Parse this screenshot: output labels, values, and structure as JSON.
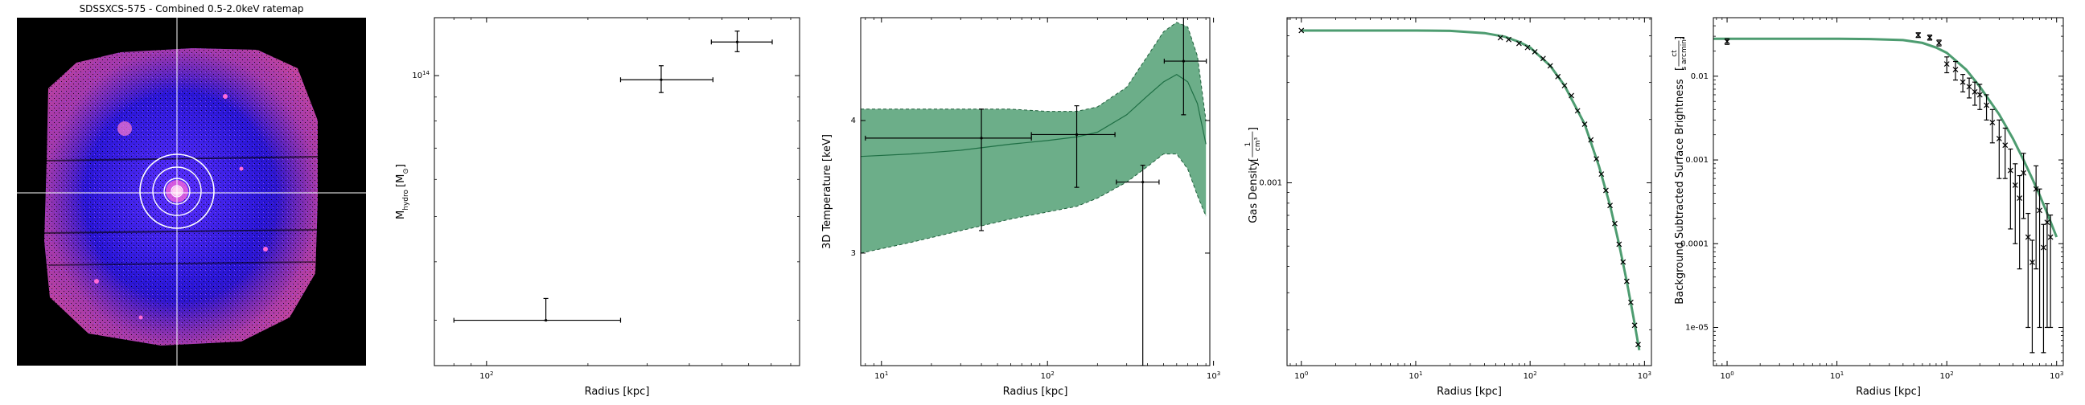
{
  "image_panel": {
    "title": "SDSSXCS-575 - Combined 0.5-2.0keV ratemap"
  },
  "chart_data": [
    {
      "type": "scatter",
      "name_text": "",
      "xlabel": "Radius [kpc]",
      "ylabel": "M",
      "ylabel_sub": "hydro",
      "ylabel_unit": "[M",
      "ylabel_unit_sub": "⊙",
      "ylabel_unit_end": "]",
      "xscale": "log",
      "yscale": "log",
      "xlim": [
        70,
        850
      ],
      "ylim": [
        24000000000000.0,
        133000000000000.0
      ],
      "x_ticks": [
        {
          "value": 100,
          "label": "10",
          "sup": "2"
        }
      ],
      "y_ticks": [
        {
          "value": 100000000000000.0,
          "label": "10",
          "sup": "14"
        }
      ],
      "points": [
        {
          "x": 150,
          "y": 30000000000000.0,
          "xerr": [
            70,
            100
          ],
          "yerr": [
            2700.0,
            3400000000000.0
          ]
        },
        {
          "x": 330,
          "y": 98000000000000.0,
          "xerr": [
            80,
            140
          ],
          "yerr": [
            6000000000000.0,
            7000000000000.0
          ]
        },
        {
          "x": 555,
          "y": 118000000000000.0,
          "xerr": [
            90,
            150
          ],
          "yerr": [
            5500000000000.0,
            6500000000000.0
          ]
        }
      ]
    },
    {
      "type": "line",
      "xlabel": "Radius [kpc]",
      "ylabel": "3D Temperature [keV]",
      "xscale": "log",
      "yscale": "log",
      "xlim": [
        7.5,
        950
      ],
      "ylim": [
        2.35,
        5.0
      ],
      "x_ticks": [
        {
          "value": 10,
          "label": "10",
          "sup": "1"
        },
        {
          "value": 100,
          "label": "10",
          "sup": "2"
        },
        {
          "value": 1000,
          "label": "10",
          "sup": "3"
        }
      ],
      "y_ticks": [
        {
          "value": 3,
          "label": "3"
        },
        {
          "value": 4,
          "label": "4"
        }
      ],
      "series": [
        {
          "role": "model",
          "color": "#2e8b57",
          "fill_color": "#2e8b57",
          "x": [
            7.5,
            15,
            30,
            60,
            100,
            150,
            200,
            300,
            400,
            500,
            600,
            700,
            800,
            900
          ],
          "y": [
            3.7,
            3.72,
            3.75,
            3.8,
            3.83,
            3.86,
            3.9,
            4.05,
            4.22,
            4.35,
            4.42,
            4.35,
            4.15,
            3.8
          ],
          "upper": [
            4.1,
            4.1,
            4.1,
            4.1,
            4.08,
            4.08,
            4.12,
            4.3,
            4.6,
            4.85,
            4.95,
            4.9,
            4.6,
            4.0
          ],
          "lower": [
            3.0,
            3.07,
            3.15,
            3.23,
            3.28,
            3.32,
            3.38,
            3.5,
            3.62,
            3.72,
            3.72,
            3.6,
            3.4,
            3.25
          ]
        }
      ],
      "points": [
        {
          "x": 40,
          "y": 3.85,
          "xerr": [
            32,
            40
          ],
          "yerr": [
            0.7,
            0.25
          ]
        },
        {
          "x": 150,
          "y": 3.88,
          "xerr": [
            70,
            105
          ],
          "yerr": [
            0.42,
            0.25
          ]
        },
        {
          "x": 375,
          "y": 3.5,
          "xerr": [
            115,
            95
          ],
          "yerr": [
            1.15,
            0.13
          ]
        },
        {
          "x": 660,
          "y": 4.55,
          "xerr": [
            155,
            245
          ],
          "yerr": [
            0.5,
            0.45
          ]
        }
      ]
    },
    {
      "type": "line",
      "xlabel": "Radius [kpc]",
      "ylabel": "Gas Density",
      "ylabel_unit_num": "1",
      "ylabel_unit_den": "cm³",
      "xscale": "log",
      "yscale": "log",
      "xlim": [
        0.75,
        1150
      ],
      "ylim": [
        0.000135,
        0.0061
      ],
      "x_ticks": [
        {
          "value": 1,
          "label": "10",
          "sup": "0"
        },
        {
          "value": 10,
          "label": "10",
          "sup": "1"
        },
        {
          "value": 100,
          "label": "10",
          "sup": "2"
        },
        {
          "value": 1000,
          "label": "10",
          "sup": "3"
        }
      ],
      "y_ticks": [
        {
          "value": 0.001,
          "label": "0.001"
        }
      ],
      "series": [
        {
          "role": "model",
          "color": "#2e8b57",
          "x": [
            1,
            5,
            10,
            20,
            40,
            60,
            80,
            100,
            150,
            200,
            300,
            400,
            500,
            600,
            700,
            800,
            900
          ],
          "y": [
            0.0053,
            0.0053,
            0.0053,
            0.00528,
            0.00515,
            0.00495,
            0.00468,
            0.0044,
            0.0036,
            0.0029,
            0.0019,
            0.0012,
            0.00078,
            0.00051,
            0.00034,
            0.00023,
            0.00016
          ]
        }
      ],
      "points": [
        {
          "x": 1,
          "y": 0.0053
        },
        {
          "x": 55,
          "y": 0.0049
        },
        {
          "x": 65,
          "y": 0.0048
        },
        {
          "x": 80,
          "y": 0.0046
        },
        {
          "x": 95,
          "y": 0.0044
        },
        {
          "x": 110,
          "y": 0.0042
        },
        {
          "x": 130,
          "y": 0.0039
        },
        {
          "x": 150,
          "y": 0.0036
        },
        {
          "x": 175,
          "y": 0.0032
        },
        {
          "x": 200,
          "y": 0.0029
        },
        {
          "x": 230,
          "y": 0.0026
        },
        {
          "x": 260,
          "y": 0.0022
        },
        {
          "x": 300,
          "y": 0.0019
        },
        {
          "x": 340,
          "y": 0.0016
        },
        {
          "x": 380,
          "y": 0.0013
        },
        {
          "x": 420,
          "y": 0.0011
        },
        {
          "x": 460,
          "y": 0.00092
        },
        {
          "x": 500,
          "y": 0.00078
        },
        {
          "x": 550,
          "y": 0.00064
        },
        {
          "x": 600,
          "y": 0.00051
        },
        {
          "x": 650,
          "y": 0.00042
        },
        {
          "x": 700,
          "y": 0.00034
        },
        {
          "x": 760,
          "y": 0.00027
        },
        {
          "x": 820,
          "y": 0.00021
        },
        {
          "x": 880,
          "y": 0.00017
        }
      ]
    },
    {
      "type": "scatter",
      "xlabel": "Radius [kpc]",
      "ylabel": "Background Subtracted Surface Brightness",
      "ylabel_unit_num": "ct",
      "ylabel_unit_den": "s arcmin²",
      "xscale": "log",
      "yscale": "log",
      "xlim": [
        0.75,
        1150
      ],
      "ylim": [
        3.5e-06,
        0.05
      ],
      "x_ticks": [
        {
          "value": 1,
          "label": "10",
          "sup": "0"
        },
        {
          "value": 10,
          "label": "10",
          "sup": "1"
        },
        {
          "value": 100,
          "label": "10",
          "sup": "2"
        },
        {
          "value": 1000,
          "label": "10",
          "sup": "3"
        }
      ],
      "y_ticks": [
        {
          "value": 0.01,
          "label": "0.01"
        },
        {
          "value": 0.001,
          "label": "0.001"
        },
        {
          "value": 0.0001,
          "label": "0.0001"
        },
        {
          "value": 1e-05,
          "label": "1e-05"
        }
      ],
      "series": [
        {
          "role": "model",
          "color": "#2e8b57",
          "x": [
            0.75,
            2,
            5,
            10,
            20,
            40,
            60,
            80,
            100,
            150,
            200,
            300,
            400,
            500,
            600,
            700,
            800,
            900,
            1000
          ],
          "y": [
            0.028,
            0.028,
            0.028,
            0.028,
            0.0278,
            0.027,
            0.025,
            0.022,
            0.019,
            0.012,
            0.0075,
            0.0035,
            0.0018,
            0.001,
            0.0006,
            0.00038,
            0.00025,
            0.00017,
            0.00012
          ]
        }
      ],
      "points": [
        {
          "x": 1,
          "y": 0.026,
          "yerr": [
            0.002,
            0.002
          ]
        },
        {
          "x": 55,
          "y": 0.031,
          "yerr": [
            0.002,
            0.002
          ]
        },
        {
          "x": 70,
          "y": 0.029,
          "yerr": [
            0.002,
            0.002
          ]
        },
        {
          "x": 85,
          "y": 0.025,
          "yerr": [
            0.002,
            0.002
          ]
        },
        {
          "x": 100,
          "y": 0.014,
          "yerr": [
            0.003,
            0.003
          ]
        },
        {
          "x": 120,
          "y": 0.012,
          "yerr": [
            0.003,
            0.003
          ]
        },
        {
          "x": 140,
          "y": 0.0085,
          "yerr": [
            0.002,
            0.002
          ]
        },
        {
          "x": 160,
          "y": 0.0075,
          "yerr": [
            0.002,
            0.002
          ]
        },
        {
          "x": 180,
          "y": 0.0065,
          "yerr": [
            0.002,
            0.002
          ]
        },
        {
          "x": 200,
          "y": 0.006,
          "yerr": [
            0.002,
            0.002
          ]
        },
        {
          "x": 230,
          "y": 0.0045,
          "yerr": [
            0.0015,
            0.0015
          ]
        },
        {
          "x": 260,
          "y": 0.0028,
          "yerr": [
            0.0012,
            0.0012
          ]
        },
        {
          "x": 300,
          "y": 0.0018,
          "yerr": [
            0.0012,
            0.0012
          ]
        },
        {
          "x": 340,
          "y": 0.0015,
          "yerr": [
            0.0009,
            0.0009
          ]
        },
        {
          "x": 380,
          "y": 0.00075,
          "yerr": [
            0.0006,
            0.0006
          ]
        },
        {
          "x": 420,
          "y": 0.0005,
          "yerr": [
            0.0004,
            0.0004
          ]
        },
        {
          "x": 460,
          "y": 0.00035,
          "yerr": [
            0.0003,
            0.0003
          ]
        },
        {
          "x": 500,
          "y": 0.0007,
          "yerr": [
            0.0005,
            0.0005
          ]
        },
        {
          "x": 550,
          "y": 0.00012,
          "yerr": [
            0.00011,
            0.00011
          ]
        },
        {
          "x": 600,
          "y": 6e-05,
          "yerr": [
            5.5e-05,
            5e-05
          ]
        },
        {
          "x": 650,
          "y": 0.00045,
          "yerr": [
            0.0004,
            0.0004
          ]
        },
        {
          "x": 700,
          "y": 0.00025,
          "yerr": [
            0.00024,
            0.0002
          ]
        },
        {
          "x": 760,
          "y": 9e-05,
          "yerr": [
            8.5e-05,
            8e-05
          ]
        },
        {
          "x": 820,
          "y": 0.00018,
          "yerr": [
            0.00017,
            0.00012
          ]
        },
        {
          "x": 880,
          "y": 0.00012,
          "yerr": [
            0.00011,
            0.0001
          ]
        }
      ]
    }
  ]
}
